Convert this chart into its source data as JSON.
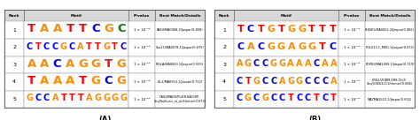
{
  "panel_A": {
    "label": "(A)",
    "rows": [
      {
        "rank": "1",
        "motif_seq": "TAATTCGC",
        "motif_colors": [
          "#ff0000",
          "#ff8c00",
          "#ff8c00",
          "#ff0000",
          "#ff0000",
          "#0000ff",
          "#ff8c00",
          "#008000"
        ],
        "pvalue": "1 × 10⁻⁴⁸",
        "details": "PAX4/MA0068.2/Jaspar(0.808)"
      },
      {
        "rank": "2",
        "motif_seq": "CTCCGCATTGTC",
        "motif_colors": [
          "#0000ff",
          "#ff0000",
          "#0000ff",
          "#0000ff",
          "#ff8c00",
          "#0000ff",
          "#ff8c00",
          "#ff0000",
          "#ff0000",
          "#ff8c00",
          "#ff0000",
          "#0000ff"
        ],
        "pvalue": "1 × 10⁻³⁵",
        "details": "Sox11/MA0078.1/Jaspar(0.675)"
      },
      {
        "rank": "3",
        "motif_seq": "AACAGGTG",
        "motif_colors": [
          "#ff8c00",
          "#ff8c00",
          "#0000ff",
          "#ff8c00",
          "#ff8c00",
          "#ff8c00",
          "#ff0000",
          "#ff8c00"
        ],
        "pvalue": "1 × 10⁻³⁰",
        "details": "FIGLA/MA0820.1/Jaspar(0.933)"
      },
      {
        "rank": "4",
        "motif_seq": "TAAATGCG",
        "motif_colors": [
          "#ff0000",
          "#ff8c00",
          "#ff8c00",
          "#ff8c00",
          "#ff0000",
          "#ff8c00",
          "#0000ff",
          "#ff8c00"
        ],
        "pvalue": "1 × 10⁻²⁵",
        "details": "ISL2/MA0914.1/Jaspar(0.712)"
      },
      {
        "rank": "5",
        "motif_seq": "GCCATTTAGGGG",
        "motif_colors": [
          "#ff8c00",
          "#0000ff",
          "#0000ff",
          "#ff8c00",
          "#ff0000",
          "#ff0000",
          "#ff0000",
          "#ff8c00",
          "#ff8c00",
          "#ff8c00",
          "#ff8c00",
          "#ff8c00"
        ],
        "pvalue": "1 × 10⁻²⁴",
        "details": "CAIG/MADS/PLIER-BACHIP-\nSeq/Sullivan_et_al./Homer(0.673)"
      }
    ]
  },
  "panel_B": {
    "label": "(B)",
    "rows": [
      {
        "rank": "1",
        "motif_seq": "TCTGTGGTTT",
        "motif_colors": [
          "#ff0000",
          "#0000ff",
          "#ff0000",
          "#ff8c00",
          "#ff0000",
          "#ff8c00",
          "#ff8c00",
          "#ff0000",
          "#ff0000",
          "#ff0000"
        ],
        "pvalue": "1 × 10⁻¹⁵",
        "details": "RUNX1/MA0002.2/Jaspar(0.965)"
      },
      {
        "rank": "2",
        "motif_seq": "CACGGAGGTC",
        "motif_colors": [
          "#0000ff",
          "#ff8c00",
          "#0000ff",
          "#ff8c00",
          "#ff8c00",
          "#ff8c00",
          "#ff8c00",
          "#ff8c00",
          "#ff0000",
          "#0000ff"
        ],
        "pvalue": "1 × 10⁻¹⁴",
        "details": "POL013.1_MED-1/Jaspar(0.672)"
      },
      {
        "rank": "3",
        "motif_seq": "AGCCGGAAACAA",
        "motif_colors": [
          "#ff8c00",
          "#ff8c00",
          "#0000ff",
          "#0000ff",
          "#ff8c00",
          "#ff8c00",
          "#ff8c00",
          "#ff8c00",
          "#ff8c00",
          "#0000ff",
          "#ff8c00",
          "#ff8c00"
        ],
        "pvalue": "1 × 10⁻¹²",
        "details": "FOXN3/MA1489.1/Jaspar(0.719)"
      },
      {
        "rank": "4",
        "motif_seq": "CTGCCAGGCCCA",
        "motif_colors": [
          "#0000ff",
          "#ff0000",
          "#ff8c00",
          "#0000ff",
          "#0000ff",
          "#ff8c00",
          "#ff8c00",
          "#ff8c00",
          "#0000ff",
          "#0000ff",
          "#0000ff",
          "#ff8c00"
        ],
        "pvalue": "1 × 10⁻¹¹",
        "details": "KRK2/VGBM-KR8-ChIP-\nSeq/GSE62211/Homer(0.686)"
      },
      {
        "rank": "5",
        "motif_seq": "CGCGCCTCCTCT",
        "motif_colors": [
          "#0000ff",
          "#ff8c00",
          "#0000ff",
          "#ff8c00",
          "#0000ff",
          "#0000ff",
          "#ff0000",
          "#0000ff",
          "#0000ff",
          "#ff0000",
          "#0000ff",
          "#ff0000"
        ],
        "pvalue": "1 × 10⁻¹⁰",
        "details": "MAZMA1522.1/Jaspar(0.652)"
      }
    ]
  }
}
